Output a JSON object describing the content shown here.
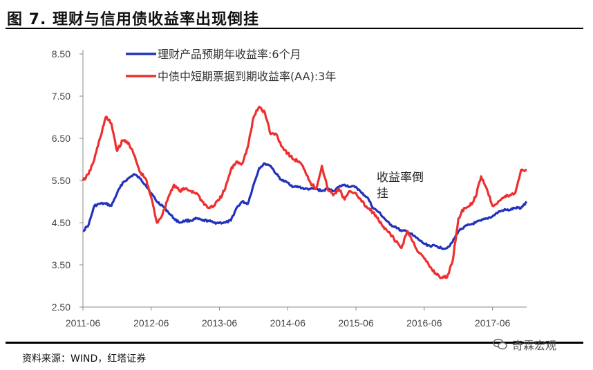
{
  "figure": {
    "title": "图 7. 理财与信用债收益率出现倒挂",
    "source": "资料来源：WIND，红塔证券",
    "watermark": "奇霖宏观"
  },
  "colors": {
    "blue": "#2233bb",
    "red": "#ee2f2f",
    "axis": "#888888"
  },
  "chart_data": {
    "type": "line",
    "title": "",
    "xlabel": "",
    "ylabel": "",
    "ylim": [
      2.5,
      8.5
    ],
    "yticks": [
      "8.50",
      "7.50",
      "6.50",
      "5.50",
      "4.50",
      "3.50",
      "2.50"
    ],
    "xticks": [
      "2011-06",
      "2012-06",
      "2013-06",
      "2014-06",
      "2015-06",
      "2016-06",
      "2017-06"
    ],
    "xrange": [
      "2011-06",
      "2017-12"
    ],
    "legend_position": "top",
    "annotation": {
      "text_line1": "收益率倒",
      "text_line2": "挂",
      "x": "2015-07",
      "y": 5.45
    },
    "series": [
      {
        "name": "理财产品预期年收益率:6个月",
        "color": "#2233bb",
        "points": [
          [
            "2011-06",
            4.3
          ],
          [
            "2011-07",
            4.45
          ],
          [
            "2011-08",
            4.9
          ],
          [
            "2011-09",
            4.95
          ],
          [
            "2011-10",
            4.95
          ],
          [
            "2011-11",
            4.9
          ],
          [
            "2011-12",
            5.2
          ],
          [
            "2012-01",
            5.45
          ],
          [
            "2012-02",
            5.55
          ],
          [
            "2012-03",
            5.65
          ],
          [
            "2012-04",
            5.55
          ],
          [
            "2012-05",
            5.4
          ],
          [
            "2012-06",
            5.2
          ],
          [
            "2012-07",
            5.0
          ],
          [
            "2012-08",
            4.9
          ],
          [
            "2012-09",
            4.75
          ],
          [
            "2012-10",
            4.6
          ],
          [
            "2012-11",
            4.5
          ],
          [
            "2012-12",
            4.55
          ],
          [
            "2013-01",
            4.55
          ],
          [
            "2013-02",
            4.6
          ],
          [
            "2013-03",
            4.55
          ],
          [
            "2013-04",
            4.55
          ],
          [
            "2013-05",
            4.5
          ],
          [
            "2013-06",
            4.5
          ],
          [
            "2013-07",
            4.5
          ],
          [
            "2013-08",
            4.55
          ],
          [
            "2013-09",
            4.85
          ],
          [
            "2013-10",
            5.0
          ],
          [
            "2013-11",
            4.95
          ],
          [
            "2013-12",
            5.4
          ],
          [
            "2014-01",
            5.8
          ],
          [
            "2014-02",
            5.9
          ],
          [
            "2014-03",
            5.85
          ],
          [
            "2014-04",
            5.65
          ],
          [
            "2014-05",
            5.5
          ],
          [
            "2014-06",
            5.45
          ],
          [
            "2014-07",
            5.35
          ],
          [
            "2014-08",
            5.35
          ],
          [
            "2014-09",
            5.3
          ],
          [
            "2014-10",
            5.3
          ],
          [
            "2014-11",
            5.3
          ],
          [
            "2014-12",
            5.25
          ],
          [
            "2015-01",
            5.3
          ],
          [
            "2015-02",
            5.25
          ],
          [
            "2015-03",
            5.35
          ],
          [
            "2015-04",
            5.4
          ],
          [
            "2015-05",
            5.35
          ],
          [
            "2015-06",
            5.35
          ],
          [
            "2015-07",
            5.2
          ],
          [
            "2015-08",
            5.1
          ],
          [
            "2015-09",
            4.85
          ],
          [
            "2015-10",
            4.75
          ],
          [
            "2015-11",
            4.6
          ],
          [
            "2015-12",
            4.45
          ],
          [
            "2016-01",
            4.4
          ],
          [
            "2016-02",
            4.3
          ],
          [
            "2016-03",
            4.3
          ],
          [
            "2016-04",
            4.2
          ],
          [
            "2016-05",
            4.1
          ],
          [
            "2016-06",
            4.0
          ],
          [
            "2016-07",
            3.95
          ],
          [
            "2016-08",
            3.95
          ],
          [
            "2016-09",
            3.9
          ],
          [
            "2016-10",
            3.9
          ],
          [
            "2016-11",
            4.05
          ],
          [
            "2016-12",
            4.3
          ],
          [
            "2017-01",
            4.4
          ],
          [
            "2017-02",
            4.45
          ],
          [
            "2017-03",
            4.5
          ],
          [
            "2017-04",
            4.55
          ],
          [
            "2017-05",
            4.6
          ],
          [
            "2017-06",
            4.65
          ],
          [
            "2017-07",
            4.75
          ],
          [
            "2017-08",
            4.8
          ],
          [
            "2017-09",
            4.8
          ],
          [
            "2017-10",
            4.85
          ],
          [
            "2017-11",
            4.85
          ],
          [
            "2017-12",
            5.0
          ]
        ]
      },
      {
        "name": "中债中短期票据到期收益率(AA):3年",
        "color": "#ee2f2f",
        "points": [
          [
            "2011-06",
            5.5
          ],
          [
            "2011-07",
            5.65
          ],
          [
            "2011-08",
            6.0
          ],
          [
            "2011-09",
            6.5
          ],
          [
            "2011-10",
            7.0
          ],
          [
            "2011-11",
            6.85
          ],
          [
            "2011-12",
            6.2
          ],
          [
            "2012-01",
            6.45
          ],
          [
            "2012-02",
            6.4
          ],
          [
            "2012-03",
            6.1
          ],
          [
            "2012-04",
            5.7
          ],
          [
            "2012-05",
            5.55
          ],
          [
            "2012-06",
            5.1
          ],
          [
            "2012-07",
            4.5
          ],
          [
            "2012-08",
            4.7
          ],
          [
            "2012-09",
            5.1
          ],
          [
            "2012-10",
            5.4
          ],
          [
            "2012-11",
            5.25
          ],
          [
            "2012-12",
            5.3
          ],
          [
            "2013-01",
            5.25
          ],
          [
            "2013-02",
            5.2
          ],
          [
            "2013-03",
            5.0
          ],
          [
            "2013-04",
            4.85
          ],
          [
            "2013-05",
            4.9
          ],
          [
            "2013-06",
            5.05
          ],
          [
            "2013-07",
            5.3
          ],
          [
            "2013-08",
            5.75
          ],
          [
            "2013-09",
            5.95
          ],
          [
            "2013-10",
            5.9
          ],
          [
            "2013-11",
            6.3
          ],
          [
            "2013-12",
            7.0
          ],
          [
            "2014-01",
            7.25
          ],
          [
            "2014-02",
            7.1
          ],
          [
            "2014-03",
            6.6
          ],
          [
            "2014-04",
            6.6
          ],
          [
            "2014-05",
            6.3
          ],
          [
            "2014-06",
            6.15
          ],
          [
            "2014-07",
            6.0
          ],
          [
            "2014-08",
            5.95
          ],
          [
            "2014-09",
            5.75
          ],
          [
            "2014-10",
            5.45
          ],
          [
            "2014-11",
            5.3
          ],
          [
            "2014-12",
            5.85
          ],
          [
            "2015-01",
            5.3
          ],
          [
            "2015-02",
            5.15
          ],
          [
            "2015-03",
            5.3
          ],
          [
            "2015-04",
            5.05
          ],
          [
            "2015-05",
            5.25
          ],
          [
            "2015-06",
            5.2
          ],
          [
            "2015-07",
            5.0
          ],
          [
            "2015-08",
            4.85
          ],
          [
            "2015-09",
            4.75
          ],
          [
            "2015-10",
            4.55
          ],
          [
            "2015-11",
            4.35
          ],
          [
            "2015-12",
            4.25
          ],
          [
            "2016-01",
            4.05
          ],
          [
            "2016-02",
            3.9
          ],
          [
            "2016-03",
            4.3
          ],
          [
            "2016-04",
            4.05
          ],
          [
            "2016-05",
            3.8
          ],
          [
            "2016-06",
            3.65
          ],
          [
            "2016-07",
            3.45
          ],
          [
            "2016-08",
            3.3
          ],
          [
            "2016-09",
            3.2
          ],
          [
            "2016-10",
            3.2
          ],
          [
            "2016-11",
            3.6
          ],
          [
            "2016-12",
            4.6
          ],
          [
            "2017-01",
            4.85
          ],
          [
            "2017-02",
            4.9
          ],
          [
            "2017-03",
            5.1
          ],
          [
            "2017-04",
            5.6
          ],
          [
            "2017-05",
            5.3
          ],
          [
            "2017-06",
            4.9
          ],
          [
            "2017-07",
            5.0
          ],
          [
            "2017-08",
            5.1
          ],
          [
            "2017-09",
            5.15
          ],
          [
            "2017-10",
            5.2
          ],
          [
            "2017-11",
            5.75
          ],
          [
            "2017-12",
            5.75
          ]
        ]
      }
    ]
  }
}
